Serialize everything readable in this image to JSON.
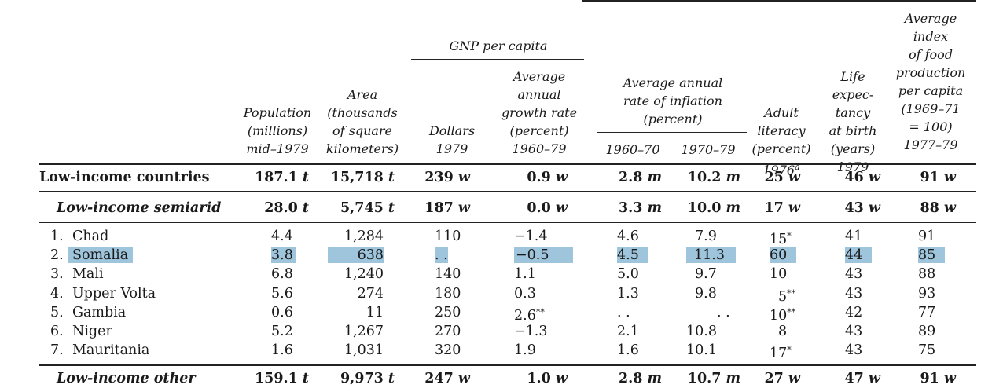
{
  "headers": {
    "population": "Population\n(millions)\nmid–1979",
    "area": "Area\n(thousands\nof square\nkilometers)",
    "gnp_group": "GNP per capita",
    "dollars": "Dollars\n1979",
    "growth": "Average\nannual\ngrowth rate\n(percent)\n1960–79",
    "inflation_group": "Average annual\nrate of inflation\n(percent)",
    "inf_6070": "1960–70",
    "inf_7079": "1970–79",
    "literacy": "Adult\nliteracy\n(percent)\n1976",
    "literacy_note": "a",
    "life": "Life\nexpec-\ntancy\nat birth\n(years)\n1979",
    "food": "Average\nindex\nof food\nproduction\nper capita\n(1969–71\n= 100)\n1977–79"
  },
  "groups": {
    "low_income": {
      "label": "Low-income countries",
      "values": [
        "187.1",
        "15,718",
        "239",
        "0.9",
        "2.8",
        "10.2",
        "25",
        "46",
        "91"
      ],
      "suffixes": [
        "t",
        "t",
        "w",
        "w",
        "m",
        "m",
        "w",
        "w",
        "w"
      ]
    },
    "semiarid": {
      "label": "Low-income semiarid",
      "values": [
        "28.0",
        "5,745",
        "187",
        "0.0",
        "3.3",
        "10.0",
        "17",
        "43",
        "88"
      ],
      "suffixes": [
        "t",
        "t",
        "w",
        "w",
        "m",
        "m",
        "w",
        "w",
        "w"
      ]
    },
    "other": {
      "label": "Low-income other",
      "values": [
        "159.1",
        "9,973",
        "247",
        "1.0",
        "2.8",
        "10.7",
        "27",
        "47",
        "91"
      ],
      "suffixes": [
        "t",
        "t",
        "w",
        "w",
        "m",
        "m",
        "w",
        "w",
        "w"
      ]
    }
  },
  "rows": [
    {
      "num": "1.",
      "name": "Chad",
      "pop": "4.4",
      "area": "1,284",
      "gnp": "110",
      "growth": "−1.4",
      "inf1": "4.6",
      "inf2": "7.9",
      "lit": "15",
      "lit_mark": "*",
      "life": "41",
      "food": "91"
    },
    {
      "num": "2.",
      "name": "Somalia",
      "pop": "3.8",
      "area": "638",
      "gnp": ". .",
      "growth": "−0.5",
      "inf1": "4.5",
      "inf2": "11.3",
      "lit": "60",
      "lit_mark": "",
      "life": "44",
      "food": "85"
    },
    {
      "num": "3.",
      "name": "Mali",
      "pop": "6.8",
      "area": "1,240",
      "gnp": "140",
      "growth": "1.1",
      "inf1": "5.0",
      "inf2": "9.7",
      "lit": "10",
      "lit_mark": "",
      "life": "43",
      "food": "88"
    },
    {
      "num": "4.",
      "name": "Upper Volta",
      "pop": "5.6",
      "area": "274",
      "gnp": "180",
      "growth": "0.3",
      "inf1": "1.3",
      "inf2": "9.8",
      "lit": "5",
      "lit_mark": "**",
      "life": "43",
      "food": "93"
    },
    {
      "num": "5.",
      "name": "Gambia",
      "pop": "0.6",
      "area": "11",
      "gnp": "250",
      "growth": "2.6",
      "growth_mark": "**",
      "inf1": ". .",
      "inf2": ". .",
      "lit": "10",
      "lit_mark": "**",
      "life": "42",
      "food": "77"
    },
    {
      "num": "6.",
      "name": "Niger",
      "pop": "5.2",
      "area": "1,267",
      "gnp": "270",
      "growth": "−1.3",
      "inf1": "2.1",
      "inf2": "10.8",
      "lit": "8",
      "lit_mark": "",
      "life": "43",
      "food": "89"
    },
    {
      "num": "7.",
      "name": "Mauritania",
      "pop": "1.6",
      "area": "1,031",
      "gnp": "320",
      "growth": "1.9",
      "inf1": "1.6",
      "inf2": "10.1",
      "lit": "17",
      "lit_mark": "*",
      "life": "43",
      "food": "75"
    }
  ]
}
